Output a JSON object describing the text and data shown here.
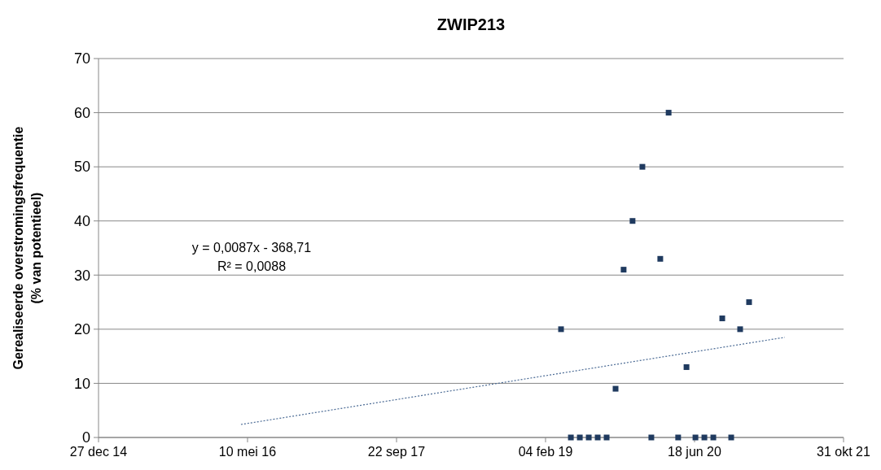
{
  "chart_data": {
    "type": "scatter",
    "title": "ZWIP213",
    "ylabel": "Gerealiseerde overstromingsfrequentie\n(% van potentieel)",
    "annotations": [
      "y = 0,0087x - 368,71",
      "R² = 0,0088"
    ],
    "xlim": [
      "2014-12-27",
      "2021-10-31"
    ],
    "xticks": [
      {
        "value": "2014-12-27",
        "label": "27 dec 14"
      },
      {
        "value": "2016-05-10",
        "label": "10 mei 16"
      },
      {
        "value": "2017-09-22",
        "label": "22 sep 17"
      },
      {
        "value": "2019-02-04",
        "label": "04 feb 19"
      },
      {
        "value": "2020-06-18",
        "label": "18 jun 20"
      },
      {
        "value": "2021-10-31",
        "label": "31 okt 21"
      }
    ],
    "ylim": [
      0,
      70
    ],
    "yticks": [
      0,
      10,
      20,
      30,
      40,
      50,
      60,
      70
    ],
    "grid": "y",
    "series": [
      {
        "color": "#1f3a5f",
        "marker": "square",
        "x": [
          "2019-03-28",
          "2019-04-30",
          "2019-05-30",
          "2019-06-29",
          "2019-07-29",
          "2019-08-28",
          "2019-09-27",
          "2019-10-24",
          "2019-11-23",
          "2019-12-26",
          "2020-01-25",
          "2020-02-24",
          "2020-03-23",
          "2020-04-24",
          "2020-05-22",
          "2020-06-21",
          "2020-07-21",
          "2020-08-20",
          "2020-09-19",
          "2020-10-19",
          "2020-11-18",
          "2020-12-18"
        ],
        "values": [
          20,
          0,
          0,
          0,
          0,
          0,
          9,
          31,
          40,
          50,
          0,
          33,
          60,
          0,
          13,
          0,
          0,
          0,
          22,
          0,
          20,
          25
        ]
      },
      {
        "type": "line",
        "color": "#4a6a94",
        "line_style": "dotted",
        "x": [
          "2016-04-18",
          "2021-04-17"
        ],
        "values": [
          2.4,
          18.5
        ]
      }
    ]
  }
}
